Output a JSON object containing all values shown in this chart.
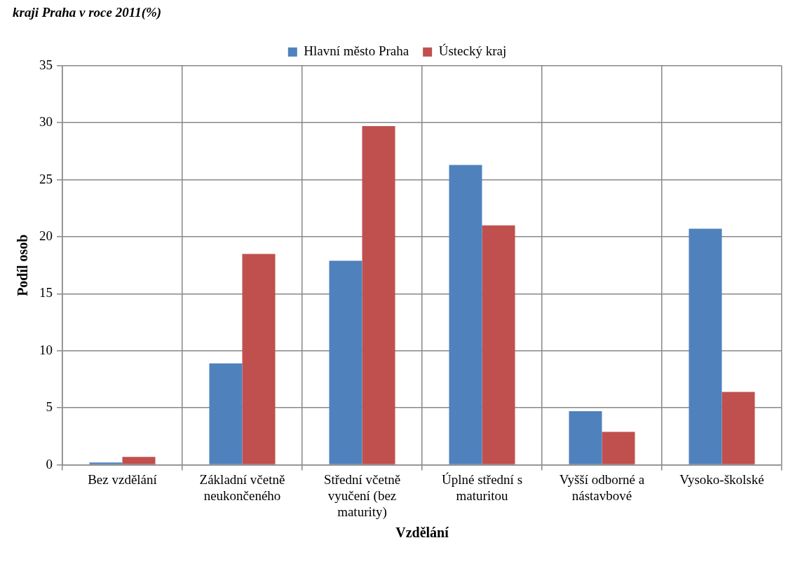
{
  "chart_data": {
    "type": "bar",
    "title": "kraji Praha v roce 2011(%)",
    "xlabel": "Vzdělání",
    "ylabel": "Podíl osob",
    "categories": [
      "Bez vzdělání",
      "Základní včetně neukončeného",
      "Střední včetně vyučení (bez maturity)",
      "Úplné střední s maturitou",
      "Vyšší odborné a nástavbové",
      "Vysoko-školské"
    ],
    "series": [
      {
        "name": "Hlavní město Praha",
        "color": "#4f81bd",
        "values": [
          0.2,
          8.9,
          17.9,
          26.3,
          4.7,
          20.7
        ]
      },
      {
        "name": "Ústecký kraj",
        "color": "#c0504d",
        "values": [
          0.7,
          18.5,
          29.7,
          21.0,
          2.9,
          6.4
        ]
      }
    ],
    "ylim": [
      0,
      35
    ],
    "yticks": [
      0,
      5,
      10,
      15,
      20,
      25,
      30,
      35
    ],
    "grid": true,
    "legend": "top"
  }
}
